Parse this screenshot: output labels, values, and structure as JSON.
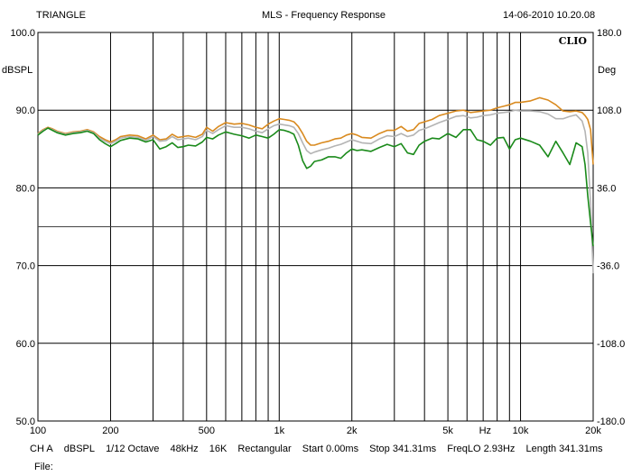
{
  "header": {
    "left": "TRIANGLE",
    "center": "MLS - Frequency Response",
    "right": "14-06-2010 10.20.08",
    "brand": "CLIO"
  },
  "footer": {
    "channel": "CH A",
    "unit": "dBSPL",
    "smoothing": "1/12 Octave",
    "rate": "48kHz",
    "fft": "16K",
    "window": "Rectangular",
    "start": "Start 0.00ms",
    "stop": "Stop 341.31ms",
    "freqlo": "FreqLO 2.93Hz",
    "length": "Length 341.31ms",
    "file_label": "File:"
  },
  "colors": {
    "orange": "#d98a1f",
    "silver": "#b4b4b4",
    "green": "#1a8a1a",
    "grid": "#000000",
    "mid_line": "#444444"
  },
  "chart_data": {
    "type": "line",
    "xscale": "log",
    "xlim": [
      100,
      20000
    ],
    "ylim": [
      50,
      100
    ],
    "ylim_right": [
      -180,
      180
    ],
    "xlabel": "Hz",
    "ylabel": "dBSPL",
    "ylabel_right": "Deg",
    "x_tick_labels": [
      {
        "value": 100,
        "label": "100"
      },
      {
        "value": 200,
        "label": "200"
      },
      {
        "value": 500,
        "label": "500"
      },
      {
        "value": 1000,
        "label": "1k"
      },
      {
        "value": 2000,
        "label": "2k"
      },
      {
        "value": 5000,
        "label": "5k"
      },
      {
        "value": 10000,
        "label": "10k"
      },
      {
        "value": 20000,
        "label": "20k"
      }
    ],
    "y_tick_labels": [
      "100.0",
      "90.0",
      "80.0",
      "70.0",
      "60.0",
      "50.0"
    ],
    "y_tick_values": [
      100,
      90,
      80,
      70,
      60,
      50
    ],
    "y_right_tick_labels": [
      "180.0",
      "108.0",
      "36.0",
      "-36.0",
      "-108.0",
      "-180.0"
    ],
    "y_right_tick_values": [
      180,
      108,
      36,
      -36,
      -108,
      -180
    ],
    "grid": true,
    "series": [
      {
        "color_key": "orange",
        "x": [
          100,
          105,
          110,
          115,
          120,
          130,
          140,
          150,
          160,
          170,
          180,
          190,
          200,
          210,
          220,
          240,
          260,
          280,
          300,
          320,
          340,
          360,
          380,
          400,
          420,
          450,
          480,
          500,
          530,
          560,
          600,
          650,
          700,
          750,
          800,
          850,
          900,
          950,
          1000,
          1050,
          1100,
          1150,
          1200,
          1250,
          1300,
          1350,
          1400,
          1500,
          1600,
          1700,
          1800,
          1900,
          2000,
          2100,
          2200,
          2400,
          2600,
          2800,
          3000,
          3200,
          3400,
          3600,
          3800,
          4000,
          4300,
          4600,
          5000,
          5400,
          5800,
          6200,
          6600,
          7000,
          7500,
          8000,
          8500,
          9000,
          9500,
          10000,
          11000,
          12000,
          13000,
          14000,
          15000,
          16000,
          17000,
          18000,
          18500,
          19000,
          19500,
          20000
        ],
        "y": [
          87.0,
          87.5,
          87.8,
          87.6,
          87.3,
          87.0,
          87.2,
          87.3,
          87.5,
          87.2,
          86.6,
          86.2,
          85.9,
          86.2,
          86.6,
          86.8,
          86.7,
          86.3,
          86.8,
          86.2,
          86.3,
          86.9,
          86.5,
          86.6,
          86.7,
          86.5,
          86.9,
          87.8,
          87.3,
          87.9,
          88.4,
          88.2,
          88.3,
          88.1,
          87.8,
          87.6,
          88.2,
          88.6,
          88.9,
          88.8,
          88.7,
          88.5,
          87.9,
          87.0,
          86.0,
          85.5,
          85.5,
          85.8,
          86.0,
          86.3,
          86.4,
          86.8,
          87.0,
          86.8,
          86.5,
          86.4,
          87.0,
          87.4,
          87.4,
          87.9,
          87.3,
          87.5,
          88.3,
          88.5,
          88.8,
          89.3,
          89.6,
          89.9,
          90.0,
          89.7,
          89.8,
          89.9,
          90.0,
          90.3,
          90.5,
          90.7,
          91.0,
          91.0,
          91.2,
          91.6,
          91.3,
          90.7,
          89.9,
          89.8,
          89.9,
          89.7,
          89.3,
          88.8,
          87.5,
          83.0
        ]
      },
      {
        "color_key": "silver",
        "x": [
          100,
          105,
          110,
          115,
          120,
          130,
          140,
          150,
          160,
          170,
          180,
          190,
          200,
          210,
          220,
          240,
          260,
          280,
          300,
          320,
          340,
          360,
          380,
          400,
          420,
          450,
          480,
          500,
          530,
          560,
          600,
          650,
          700,
          750,
          800,
          850,
          900,
          950,
          1000,
          1050,
          1100,
          1150,
          1200,
          1250,
          1300,
          1350,
          1400,
          1500,
          1600,
          1700,
          1800,
          1900,
          2000,
          2100,
          2200,
          2400,
          2600,
          2800,
          3000,
          3200,
          3400,
          3600,
          3800,
          4000,
          4300,
          4600,
          5000,
          5400,
          5800,
          6200,
          6600,
          7000,
          7500,
          8000,
          8500,
          9000,
          9500,
          10000,
          11000,
          12000,
          13000,
          14000,
          15000,
          16000,
          17000,
          18000,
          18500,
          19000,
          19500,
          20000
        ],
        "y": [
          86.9,
          87.4,
          87.7,
          87.5,
          87.2,
          86.9,
          87.1,
          87.2,
          87.4,
          87.1,
          86.4,
          86.0,
          85.7,
          86.0,
          86.4,
          86.6,
          86.5,
          86.1,
          86.6,
          86.0,
          86.1,
          86.6,
          86.2,
          86.3,
          86.4,
          86.2,
          86.6,
          87.4,
          87.0,
          87.5,
          88.0,
          87.8,
          87.8,
          87.6,
          87.3,
          87.1,
          87.6,
          88.0,
          88.2,
          88.1,
          88.0,
          87.8,
          87.0,
          85.8,
          84.8,
          84.4,
          84.6,
          84.9,
          85.1,
          85.4,
          85.6,
          85.9,
          86.2,
          86.0,
          85.8,
          85.7,
          86.3,
          86.7,
          86.6,
          87.0,
          86.6,
          86.8,
          87.4,
          87.6,
          88.0,
          88.4,
          88.8,
          89.2,
          89.3,
          89.0,
          89.1,
          89.3,
          89.4,
          89.6,
          89.7,
          89.8,
          90.0,
          89.9,
          89.9,
          89.8,
          89.5,
          88.9,
          88.9,
          89.2,
          89.4,
          88.6,
          87.3,
          84.5,
          78.0,
          69.0
        ]
      },
      {
        "color_key": "green",
        "x": [
          100,
          105,
          110,
          115,
          120,
          130,
          140,
          150,
          160,
          170,
          180,
          190,
          200,
          210,
          220,
          240,
          260,
          280,
          300,
          320,
          340,
          360,
          380,
          400,
          420,
          450,
          480,
          500,
          530,
          560,
          600,
          650,
          700,
          750,
          800,
          850,
          900,
          950,
          1000,
          1050,
          1100,
          1150,
          1200,
          1250,
          1300,
          1350,
          1400,
          1500,
          1600,
          1700,
          1800,
          1900,
          2000,
          2100,
          2200,
          2400,
          2600,
          2800,
          3000,
          3200,
          3400,
          3600,
          3800,
          4000,
          4300,
          4600,
          5000,
          5400,
          5800,
          6200,
          6600,
          7000,
          7500,
          8000,
          8500,
          9000,
          9500,
          10000,
          11000,
          12000,
          13000,
          14000,
          15000,
          16000,
          17000,
          18000,
          18500,
          19000,
          19500,
          20000
        ],
        "y": [
          86.8,
          87.3,
          87.7,
          87.4,
          87.1,
          86.8,
          87.0,
          87.1,
          87.3,
          87.0,
          86.2,
          85.7,
          85.3,
          85.7,
          86.1,
          86.4,
          86.3,
          85.9,
          86.2,
          85.0,
          85.3,
          85.8,
          85.2,
          85.3,
          85.5,
          85.4,
          85.9,
          86.5,
          86.3,
          86.8,
          87.2,
          86.9,
          86.7,
          86.4,
          86.8,
          86.6,
          86.4,
          86.9,
          87.5,
          87.4,
          87.2,
          86.9,
          85.5,
          83.5,
          82.5,
          82.8,
          83.4,
          83.6,
          84.0,
          84.0,
          83.8,
          84.5,
          85.0,
          84.8,
          84.9,
          84.7,
          85.2,
          85.6,
          85.3,
          85.7,
          84.5,
          84.3,
          85.5,
          86.0,
          86.4,
          86.3,
          87.0,
          86.5,
          87.5,
          87.5,
          86.2,
          86.0,
          85.5,
          86.4,
          86.5,
          85.0,
          86.2,
          86.4,
          86.0,
          85.5,
          84.0,
          86.0,
          84.5,
          83.0,
          85.8,
          85.3,
          83.0,
          79.0,
          75.5,
          72.5
        ]
      }
    ]
  }
}
